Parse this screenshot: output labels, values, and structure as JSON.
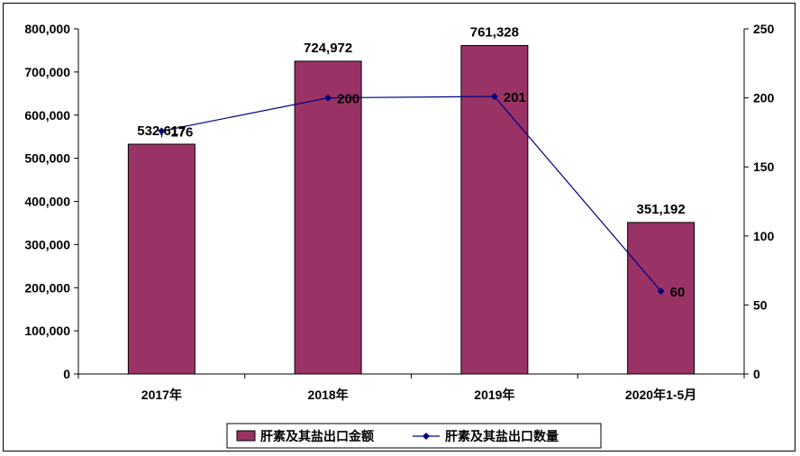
{
  "chart_data": {
    "type": "bar",
    "categories": [
      "2017年",
      "2018年",
      "2019年",
      "2020年1-5月"
    ],
    "series": [
      {
        "name": "肝素及其盐出口金额",
        "type": "bar",
        "axis": "left",
        "values": [
          532617,
          724972,
          761328,
          351192
        ]
      },
      {
        "name": "肝素及其盐出口数量",
        "type": "line",
        "axis": "right",
        "values": [
          176,
          200,
          201,
          60
        ]
      }
    ],
    "bar_value_labels": [
      "532,617",
      "724,972",
      "761,328",
      "351,192"
    ],
    "line_value_labels": [
      "176",
      "200",
      "201",
      "60"
    ],
    "ylim_left": [
      0,
      800000
    ],
    "yticks_left": [
      "0",
      "100,000",
      "200,000",
      "300,000",
      "400,000",
      "500,000",
      "600,000",
      "700,000",
      "800,000"
    ],
    "ylim_right": [
      0,
      250
    ],
    "yticks_right": [
      "0",
      "50",
      "100",
      "150",
      "200",
      "250"
    ],
    "legend_position": "bottom",
    "grid": false,
    "colors": {
      "bar": "#993366",
      "line": "#000080"
    }
  }
}
